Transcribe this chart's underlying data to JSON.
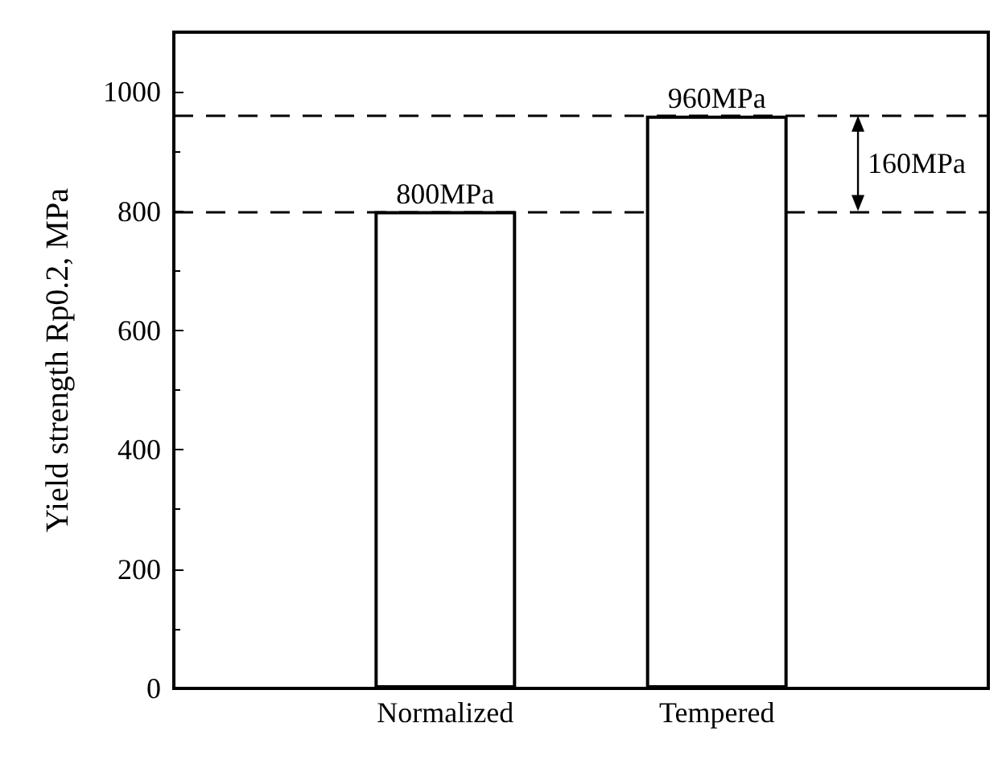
{
  "chart_data": {
    "type": "bar",
    "ylabel": "Yield strength Rp0.2, MPa",
    "categories": [
      null,
      "Normalized",
      "Tempered",
      null
    ],
    "values": [
      null,
      800,
      960,
      null
    ],
    "value_labels": [
      null,
      "800MPa",
      "960MPa",
      null
    ],
    "color": "#ffffff",
    "ylim": [
      0,
      1100
    ],
    "yticks": [
      0,
      200,
      400,
      600,
      800,
      1000
    ],
    "grid": false,
    "ref_lines": [
      {
        "axis": "y",
        "value": 800,
        "color": "#000000",
        "line_style": "dashed"
      },
      {
        "axis": "y",
        "value": 960,
        "color": "#000000",
        "line_style": "dashed"
      }
    ],
    "annotations": [
      "160MPa"
    ]
  }
}
